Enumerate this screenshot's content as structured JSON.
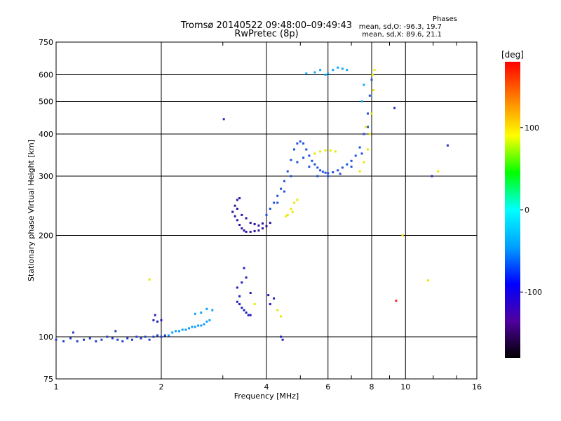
{
  "header": {
    "title_line1": "Tromsø 20140522 09:48:00–09:49:43",
    "title_line2": "RwPretec (8p)",
    "stats_heading": "Phases",
    "stats_o": "mean, sd,O:  -96.3, 19.7",
    "stats_x": "mean, sd,X:   89.6, 21.1"
  },
  "chart_data": {
    "type": "scatter",
    "title": "Tromsø 20140522 09:48:00–09:49:43",
    "subtitle": "RwPretec (8p)",
    "xlabel": "Frequency [MHz]",
    "ylabel": "Stationary phase Virtual Height [km]",
    "x_scale": "log2",
    "y_scale": "log",
    "xlim": [
      1,
      16
    ],
    "ylim": [
      75,
      750
    ],
    "x_ticks": [
      "1",
      "2",
      "4",
      "6",
      "8",
      "10",
      "16"
    ],
    "x_tick_values": [
      1,
      2,
      4,
      6,
      8,
      10,
      16
    ],
    "y_ticks": [
      "75",
      "100",
      "200",
      "300",
      "400",
      "500",
      "600",
      "750"
    ],
    "y_tick_values": [
      75,
      100,
      200,
      300,
      400,
      500,
      600,
      750
    ],
    "grid": true,
    "colorbar": {
      "label": "[deg]",
      "range": [
        -180,
        180
      ],
      "ticks": [
        "100",
        "0",
        "-100"
      ],
      "tick_values": [
        100,
        0,
        -100
      ],
      "colors": [
        "#000000",
        "#5000a0",
        "#0000ff",
        "#00a0ff",
        "#00ffff",
        "#00ff00",
        "#ffff00",
        "#ff8000",
        "#ff0000"
      ]
    },
    "series": [
      {
        "phase_deg": -105,
        "color": "#2040d0",
        "points": [
          [
            1.0,
            98
          ],
          [
            1.05,
            97
          ],
          [
            1.1,
            99
          ],
          [
            1.15,
            97
          ],
          [
            1.2,
            98
          ],
          [
            1.25,
            99
          ],
          [
            1.3,
            97
          ],
          [
            1.35,
            98
          ],
          [
            1.4,
            100
          ],
          [
            1.45,
            99
          ],
          [
            1.5,
            98
          ],
          [
            1.55,
            97
          ],
          [
            1.6,
            99
          ],
          [
            1.65,
            98
          ],
          [
            1.7,
            100
          ],
          [
            1.75,
            99
          ],
          [
            1.8,
            100
          ],
          [
            1.85,
            98
          ],
          [
            1.9,
            100
          ],
          [
            1.95,
            101
          ],
          [
            1.12,
            103
          ],
          [
            1.48,
            104
          ],
          [
            2.0,
            100
          ],
          [
            2.05,
            101
          ]
        ]
      },
      {
        "phase_deg": -60,
        "color": "#10a0ff",
        "points": [
          [
            2.1,
            101
          ],
          [
            2.15,
            103
          ],
          [
            2.2,
            104
          ],
          [
            2.25,
            104
          ],
          [
            2.3,
            105
          ],
          [
            2.35,
            105
          ],
          [
            2.4,
            106
          ],
          [
            2.45,
            107
          ],
          [
            2.5,
            107
          ],
          [
            2.55,
            108
          ],
          [
            2.6,
            108
          ],
          [
            2.65,
            109
          ],
          [
            2.7,
            111
          ],
          [
            2.75,
            112
          ],
          [
            2.6,
            118
          ],
          [
            2.7,
            121
          ],
          [
            2.8,
            120
          ],
          [
            2.5,
            117
          ]
        ]
      },
      {
        "phase_deg": -110,
        "color": "#2020c0",
        "points": [
          [
            1.9,
            112
          ],
          [
            1.95,
            111
          ],
          [
            2.0,
            112
          ],
          [
            1.92,
            116
          ],
          [
            3.3,
            127
          ],
          [
            3.35,
            125
          ],
          [
            3.4,
            122
          ],
          [
            3.45,
            120
          ],
          [
            3.5,
            118
          ],
          [
            3.55,
            116
          ],
          [
            3.6,
            116
          ],
          [
            3.3,
            140
          ],
          [
            3.4,
            145
          ],
          [
            3.5,
            150
          ],
          [
            3.45,
            160
          ],
          [
            3.6,
            135
          ],
          [
            3.35,
            132
          ],
          [
            4.1,
            125
          ],
          [
            4.2,
            130
          ],
          [
            4.05,
            133
          ],
          [
            4.4,
            100
          ],
          [
            4.45,
            98
          ]
        ]
      },
      {
        "phase_deg": -130,
        "color": "#3010a0",
        "points": [
          [
            3.2,
            235
          ],
          [
            3.25,
            228
          ],
          [
            3.3,
            222
          ],
          [
            3.35,
            215
          ],
          [
            3.4,
            210
          ],
          [
            3.45,
            207
          ],
          [
            3.5,
            205
          ],
          [
            3.6,
            205
          ],
          [
            3.7,
            206
          ],
          [
            3.8,
            207
          ],
          [
            3.9,
            210
          ],
          [
            4.0,
            213
          ],
          [
            4.1,
            218
          ],
          [
            3.25,
            245
          ],
          [
            3.3,
            240
          ],
          [
            3.4,
            230
          ],
          [
            3.5,
            225
          ],
          [
            3.6,
            218
          ],
          [
            3.7,
            216
          ],
          [
            3.8,
            214
          ],
          [
            3.9,
            217
          ],
          [
            3.3,
            255
          ],
          [
            3.35,
            258
          ]
        ]
      },
      {
        "phase_deg": -100,
        "color": "#2050e0",
        "points": [
          [
            4.0,
            230
          ],
          [
            4.1,
            240
          ],
          [
            4.2,
            250
          ],
          [
            4.3,
            262
          ],
          [
            4.4,
            275
          ],
          [
            4.5,
            290
          ],
          [
            4.6,
            310
          ],
          [
            4.7,
            335
          ],
          [
            4.8,
            360
          ],
          [
            4.9,
            375
          ],
          [
            5.0,
            380
          ],
          [
            5.1,
            375
          ],
          [
            5.2,
            360
          ],
          [
            5.3,
            345
          ],
          [
            5.4,
            333
          ],
          [
            5.5,
            325
          ],
          [
            5.6,
            318
          ],
          [
            5.7,
            312
          ],
          [
            5.8,
            309
          ],
          [
            5.9,
            307
          ],
          [
            6.0,
            306
          ],
          [
            6.2,
            308
          ],
          [
            6.4,
            312
          ],
          [
            6.6,
            318
          ],
          [
            6.8,
            325
          ],
          [
            7.0,
            333
          ],
          [
            7.2,
            345
          ],
          [
            7.4,
            365
          ],
          [
            7.6,
            400
          ],
          [
            7.8,
            460
          ],
          [
            7.9,
            520
          ],
          [
            8.0,
            580
          ],
          [
            4.3,
            250
          ],
          [
            4.5,
            270
          ],
          [
            4.7,
            300
          ],
          [
            4.9,
            330
          ],
          [
            5.1,
            340
          ],
          [
            5.3,
            320
          ],
          [
            5.6,
            300
          ],
          [
            6.0,
            300
          ],
          [
            6.5,
            305
          ],
          [
            7.0,
            320
          ],
          [
            7.5,
            350
          ],
          [
            7.8,
            420
          ]
        ]
      },
      {
        "phase_deg": -60,
        "color": "#10a8ff",
        "points": [
          [
            5.5,
            610
          ],
          [
            5.7,
            620
          ],
          [
            5.9,
            600
          ],
          [
            6.0,
            605
          ],
          [
            6.2,
            620
          ],
          [
            6.4,
            630
          ],
          [
            6.6,
            625
          ],
          [
            6.8,
            620
          ],
          [
            5.2,
            605
          ],
          [
            7.5,
            500
          ],
          [
            7.6,
            560
          ]
        ]
      },
      {
        "phase_deg": 100,
        "color": "#e8e800",
        "points": [
          [
            4.6,
            230
          ],
          [
            4.7,
            240
          ],
          [
            4.8,
            250
          ],
          [
            4.9,
            255
          ],
          [
            4.75,
            235
          ],
          [
            4.55,
            228
          ],
          [
            5.5,
            350
          ],
          [
            5.7,
            355
          ],
          [
            5.9,
            358
          ],
          [
            6.1,
            357
          ],
          [
            6.3,
            355
          ],
          [
            7.4,
            310
          ],
          [
            7.6,
            330
          ],
          [
            7.8,
            360
          ],
          [
            7.9,
            400
          ],
          [
            8.0,
            460
          ],
          [
            8.1,
            540
          ],
          [
            8.15,
            620
          ],
          [
            8.05,
            600
          ],
          [
            7.7,
            420
          ],
          [
            4.3,
            120
          ],
          [
            4.4,
            115
          ],
          [
            3.7,
            125
          ],
          [
            9.8,
            200
          ],
          [
            12.4,
            310
          ],
          [
            11.6,
            147
          ],
          [
            1.85,
            148
          ]
        ]
      },
      {
        "phase_deg": 180,
        "color": "#ff2020",
        "points": [
          [
            9.4,
            128
          ]
        ]
      },
      {
        "phase_deg": -115,
        "color": "#2030c0",
        "points": [
          [
            3.02,
            443
          ],
          [
            13.2,
            370
          ],
          [
            9.3,
            478
          ],
          [
            11.9,
            300
          ]
        ]
      }
    ]
  }
}
